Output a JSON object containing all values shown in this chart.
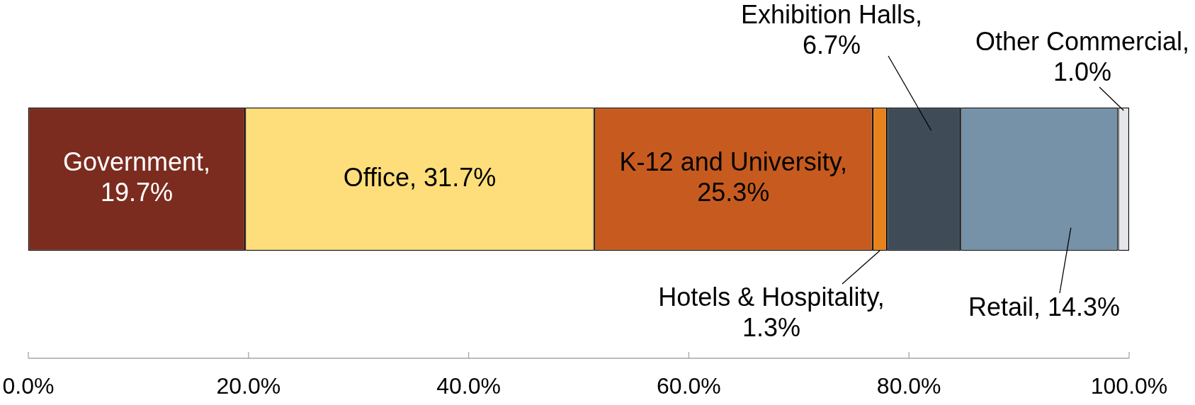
{
  "chart_data": {
    "type": "bar",
    "orientation": "horizontal",
    "stacked": true,
    "categories": [
      null
    ],
    "series": [
      {
        "color": "#7b2c1f",
        "values": [
          19.7
        ],
        "value_labels": [
          "Government, 19.7%"
        ]
      },
      {
        "color": "#fdde7a",
        "values": [
          31.7
        ],
        "value_labels": [
          "Office, 31.7%"
        ]
      },
      {
        "color": "#c75b1f",
        "values": [
          25.3
        ],
        "value_labels": [
          "K-12 and University, 25.3%"
        ]
      },
      {
        "color": "#e8821a",
        "values": [
          1.3
        ],
        "value_labels": [
          "Hotels & Hospitality, 1.3%"
        ]
      },
      {
        "color": "#3f4c57",
        "values": [
          6.7
        ],
        "value_labels": [
          "Exhibition Halls, 6.7%"
        ]
      },
      {
        "color": "#7692a8",
        "values": [
          14.3
        ],
        "value_labels": [
          "Retail, 14.3%"
        ]
      },
      {
        "color": "#e4e6ea",
        "values": [
          1.0
        ],
        "value_labels": [
          "Other Commercial, 1.0%"
        ]
      }
    ],
    "xlim": [
      0,
      100
    ],
    "xticks": [
      {
        "value": 0,
        "label": "0.0%"
      },
      {
        "value": 20,
        "label": "20.0%"
      },
      {
        "value": 40,
        "label": "40.0%"
      },
      {
        "value": 60,
        "label": "60.0%"
      },
      {
        "value": 80,
        "label": "80.0%"
      },
      {
        "value": 100,
        "label": "100.0%"
      }
    ],
    "grid": false,
    "legend": false,
    "tick_labels": "x"
  }
}
